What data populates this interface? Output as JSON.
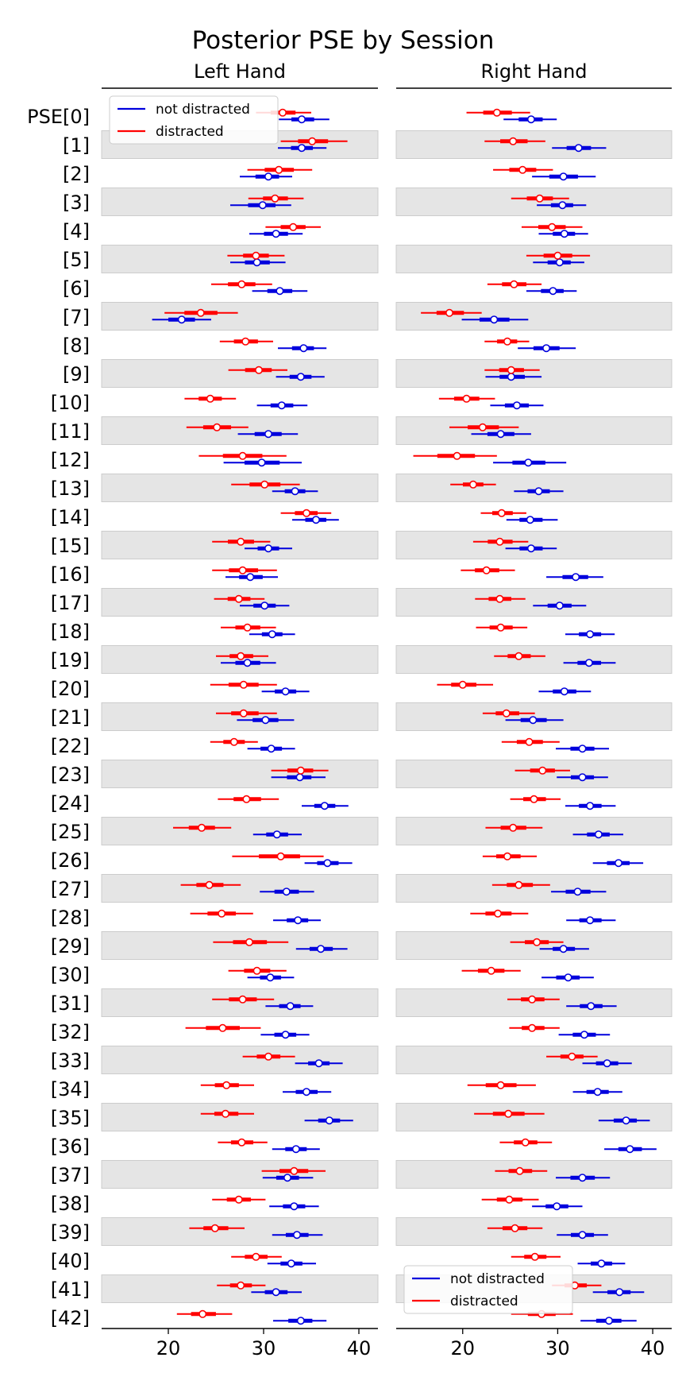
{
  "chart_data": {
    "type": "forest",
    "title": "Posterior PSE by Session",
    "y_labels": [
      "PSE[0]",
      "[1]",
      "[2]",
      "[3]",
      "[4]",
      "[5]",
      "[6]",
      "[7]",
      "[8]",
      "[9]",
      "[10]",
      "[11]",
      "[12]",
      "[13]",
      "[14]",
      "[15]",
      "[16]",
      "[17]",
      "[18]",
      "[19]",
      "[20]",
      "[21]",
      "[22]",
      "[23]",
      "[24]",
      "[25]",
      "[26]",
      "[27]",
      "[28]",
      "[29]",
      "[30]",
      "[31]",
      "[32]",
      "[33]",
      "[34]",
      "[35]",
      "[36]",
      "[37]",
      "[38]",
      "[39]",
      "[40]",
      "[41]",
      "[42]"
    ],
    "xlim": [
      13,
      42
    ],
    "xticks": [
      20,
      30,
      40
    ],
    "grid": false,
    "colors": {
      "not_distracted": "#0000dd",
      "distracted": "#ff0000",
      "band": "#e5e5e5"
    },
    "panels": [
      {
        "title": "Left Hand",
        "legend": {
          "position": "top-left",
          "entries": [
            "not distracted",
            "distracted"
          ]
        },
        "series": [
          {
            "name": "not distracted",
            "color": "#0000dd",
            "values": [
              [
                31.6,
                34.0,
                36.9
              ],
              [
                31.5,
                34.0,
                36.6
              ],
              [
                27.5,
                30.5,
                33.0
              ],
              [
                26.5,
                29.9,
                32.9
              ],
              [
                28.5,
                31.3,
                34.1
              ],
              [
                26.5,
                29.3,
                32.3
              ],
              [
                28.8,
                31.7,
                34.6
              ],
              [
                18.3,
                21.4,
                24.5
              ],
              [
                31.5,
                34.2,
                36.6
              ],
              [
                31.3,
                33.9,
                36.4
              ],
              [
                29.3,
                31.9,
                34.6
              ],
              [
                27.3,
                30.5,
                33.6
              ],
              [
                25.8,
                29.8,
                34.0
              ],
              [
                30.9,
                33.3,
                35.7
              ],
              [
                33.0,
                35.5,
                37.9
              ],
              [
                28.0,
                30.5,
                33.0
              ],
              [
                26.0,
                28.6,
                31.5
              ],
              [
                27.5,
                30.1,
                32.7
              ],
              [
                28.5,
                30.9,
                33.3
              ],
              [
                25.5,
                28.3,
                31.3
              ],
              [
                29.8,
                32.3,
                34.8
              ],
              [
                27.2,
                30.2,
                33.2
              ],
              [
                28.3,
                30.8,
                33.3
              ],
              [
                30.8,
                33.8,
                36.5
              ],
              [
                34.0,
                36.4,
                38.9
              ],
              [
                28.9,
                31.4,
                34.0
              ],
              [
                34.3,
                36.7,
                39.3
              ],
              [
                29.6,
                32.4,
                35.3
              ],
              [
                31.0,
                33.6,
                36.0
              ],
              [
                33.4,
                36.0,
                38.8
              ],
              [
                28.3,
                30.7,
                33.2
              ],
              [
                30.2,
                32.8,
                35.2
              ],
              [
                29.7,
                32.3,
                34.8
              ],
              [
                33.3,
                35.8,
                38.3
              ],
              [
                32.0,
                34.5,
                37.1
              ],
              [
                34.3,
                36.9,
                39.4
              ],
              [
                30.9,
                33.4,
                35.9
              ],
              [
                29.9,
                32.5,
                35.2
              ],
              [
                30.6,
                33.2,
                35.8
              ],
              [
                30.9,
                33.5,
                36.2
              ],
              [
                30.4,
                32.9,
                35.5
              ],
              [
                28.7,
                31.3,
                34.0
              ],
              [
                31.0,
                33.9,
                36.6
              ]
            ]
          },
          {
            "name": "distracted",
            "color": "#ff0000",
            "values": [
              [
                29.2,
                32.0,
                35.0
              ],
              [
                31.8,
                35.1,
                38.8
              ],
              [
                28.3,
                31.6,
                35.1
              ],
              [
                28.4,
                31.2,
                34.2
              ],
              [
                30.2,
                33.1,
                36.0
              ],
              [
                26.2,
                29.2,
                32.2
              ],
              [
                24.5,
                27.7,
                30.9
              ],
              [
                19.6,
                23.4,
                27.3
              ],
              [
                25.4,
                28.1,
                31.0
              ],
              [
                26.3,
                29.5,
                32.5
              ],
              [
                21.7,
                24.4,
                27.1
              ],
              [
                21.9,
                25.1,
                28.4
              ],
              [
                23.2,
                27.8,
                32.4
              ],
              [
                26.6,
                30.1,
                33.8
              ],
              [
                31.8,
                34.5,
                37.1
              ],
              [
                24.6,
                27.6,
                30.7
              ],
              [
                24.6,
                27.8,
                31.4
              ],
              [
                24.8,
                27.4,
                30.1
              ],
              [
                25.5,
                28.3,
                31.3
              ],
              [
                25.0,
                27.6,
                30.5
              ],
              [
                24.4,
                27.9,
                31.4
              ],
              [
                25.0,
                27.9,
                31.4
              ],
              [
                24.4,
                26.9,
                29.4
              ],
              [
                30.8,
                33.9,
                36.8
              ],
              [
                25.2,
                28.2,
                31.6
              ],
              [
                20.5,
                23.5,
                26.6
              ],
              [
                26.7,
                31.8,
                36.3
              ],
              [
                21.3,
                24.3,
                27.6
              ],
              [
                22.3,
                25.6,
                28.9
              ],
              [
                24.7,
                28.5,
                32.6
              ],
              [
                26.3,
                29.3,
                32.4
              ],
              [
                24.6,
                27.8,
                31.1
              ],
              [
                21.8,
                25.7,
                29.7
              ],
              [
                27.8,
                30.5,
                33.3
              ],
              [
                23.4,
                26.1,
                29.0
              ],
              [
                23.4,
                26.0,
                29.0
              ],
              [
                25.2,
                27.7,
                30.4
              ],
              [
                29.8,
                33.2,
                36.5
              ],
              [
                24.6,
                27.4,
                30.2
              ],
              [
                22.2,
                24.9,
                28.0
              ],
              [
                26.6,
                29.2,
                31.9
              ],
              [
                25.1,
                27.6,
                30.2
              ],
              [
                20.9,
                23.6,
                26.7
              ]
            ]
          }
        ]
      },
      {
        "title": "Right Hand",
        "legend": {
          "position": "bottom-left",
          "entries": [
            "not distracted",
            "distracted"
          ]
        },
        "series": [
          {
            "name": "not distracted",
            "color": "#0000dd",
            "values": [
              [
                24.3,
                27.2,
                29.9
              ],
              [
                29.4,
                32.2,
                35.1
              ],
              [
                27.3,
                30.6,
                34.0
              ],
              [
                27.8,
                30.5,
                33.0
              ],
              [
                28.0,
                30.7,
                33.2
              ],
              [
                27.4,
                30.2,
                32.8
              ],
              [
                26.7,
                29.5,
                32.0
              ],
              [
                19.9,
                23.3,
                26.9
              ],
              [
                25.8,
                28.8,
                31.9
              ],
              [
                22.4,
                25.1,
                28.3
              ],
              [
                22.9,
                25.7,
                28.5
              ],
              [
                20.9,
                24.0,
                27.2
              ],
              [
                23.2,
                26.9,
                30.9
              ],
              [
                25.4,
                28.0,
                30.6
              ],
              [
                24.6,
                27.1,
                30.0
              ],
              [
                24.5,
                27.2,
                29.9
              ],
              [
                28.8,
                31.9,
                34.8
              ],
              [
                27.4,
                30.2,
                33.0
              ],
              [
                30.8,
                33.4,
                36.0
              ],
              [
                30.6,
                33.3,
                36.1
              ],
              [
                28.0,
                30.7,
                33.5
              ],
              [
                24.5,
                27.4,
                30.6
              ],
              [
                29.8,
                32.6,
                35.4
              ],
              [
                29.9,
                32.6,
                35.3
              ],
              [
                30.8,
                33.4,
                36.1
              ],
              [
                31.6,
                34.3,
                36.9
              ],
              [
                33.7,
                36.4,
                39.0
              ],
              [
                29.3,
                32.1,
                35.1
              ],
              [
                30.9,
                33.4,
                36.1
              ],
              [
                28.1,
                30.6,
                33.3
              ],
              [
                28.3,
                31.1,
                33.8
              ],
              [
                30.9,
                33.5,
                36.2
              ],
              [
                30.1,
                32.8,
                35.5
              ],
              [
                32.6,
                35.2,
                37.8
              ],
              [
                31.6,
                34.2,
                36.8
              ],
              [
                34.3,
                37.2,
                39.7
              ],
              [
                34.9,
                37.6,
                40.4
              ],
              [
                29.8,
                32.6,
                35.5
              ],
              [
                27.3,
                29.9,
                32.6
              ],
              [
                29.9,
                32.6,
                35.3
              ],
              [
                32.1,
                34.6,
                37.1
              ],
              [
                33.7,
                36.5,
                39.1
              ],
              [
                32.4,
                35.4,
                38.3
              ]
            ]
          },
          {
            "name": "distracted",
            "color": "#ff0000",
            "values": [
              [
                20.4,
                23.6,
                27.1
              ],
              [
                22.3,
                25.3,
                28.7
              ],
              [
                23.2,
                26.3,
                29.5
              ],
              [
                25.1,
                28.1,
                31.2
              ],
              [
                26.2,
                29.4,
                32.6
              ],
              [
                26.7,
                30.0,
                33.4
              ],
              [
                22.6,
                25.4,
                28.3
              ],
              [
                15.6,
                18.6,
                22.0
              ],
              [
                22.3,
                24.7,
                27.0
              ],
              [
                22.3,
                25.1,
                28.1
              ],
              [
                17.5,
                20.4,
                23.4
              ],
              [
                18.6,
                22.1,
                25.9
              ],
              [
                14.8,
                19.4,
                23.6
              ],
              [
                18.7,
                21.1,
                23.5
              ],
              [
                21.9,
                24.1,
                26.7
              ],
              [
                21.1,
                23.9,
                26.9
              ],
              [
                19.8,
                22.5,
                25.5
              ],
              [
                21.3,
                23.9,
                26.6
              ],
              [
                21.4,
                24.0,
                26.8
              ],
              [
                23.3,
                25.9,
                28.7
              ],
              [
                17.3,
                20.0,
                23.2
              ],
              [
                22.1,
                24.6,
                27.6
              ],
              [
                24.1,
                27.0,
                30.2
              ],
              [
                25.5,
                28.4,
                31.3
              ],
              [
                25.0,
                27.5,
                30.3
              ],
              [
                22.4,
                25.3,
                28.4
              ],
              [
                22.1,
                24.7,
                27.8
              ],
              [
                23.1,
                25.9,
                29.2
              ],
              [
                20.8,
                23.7,
                26.9
              ],
              [
                25.0,
                27.8,
                30.6
              ],
              [
                19.9,
                23.0,
                26.1
              ],
              [
                24.7,
                27.3,
                30.2
              ],
              [
                24.9,
                27.3,
                30.2
              ],
              [
                28.8,
                31.5,
                34.2
              ],
              [
                20.5,
                24.0,
                27.7
              ],
              [
                21.2,
                24.8,
                28.6
              ],
              [
                23.9,
                26.6,
                29.4
              ],
              [
                23.4,
                26.0,
                28.9
              ],
              [
                22.0,
                24.9,
                28.0
              ],
              [
                22.6,
                25.5,
                28.4
              ],
              [
                25.1,
                27.6,
                30.3
              ],
              [
                29.4,
                31.8,
                34.6
              ],
              [
                25.1,
                28.3,
                31.6
              ]
            ]
          }
        ]
      }
    ]
  }
}
